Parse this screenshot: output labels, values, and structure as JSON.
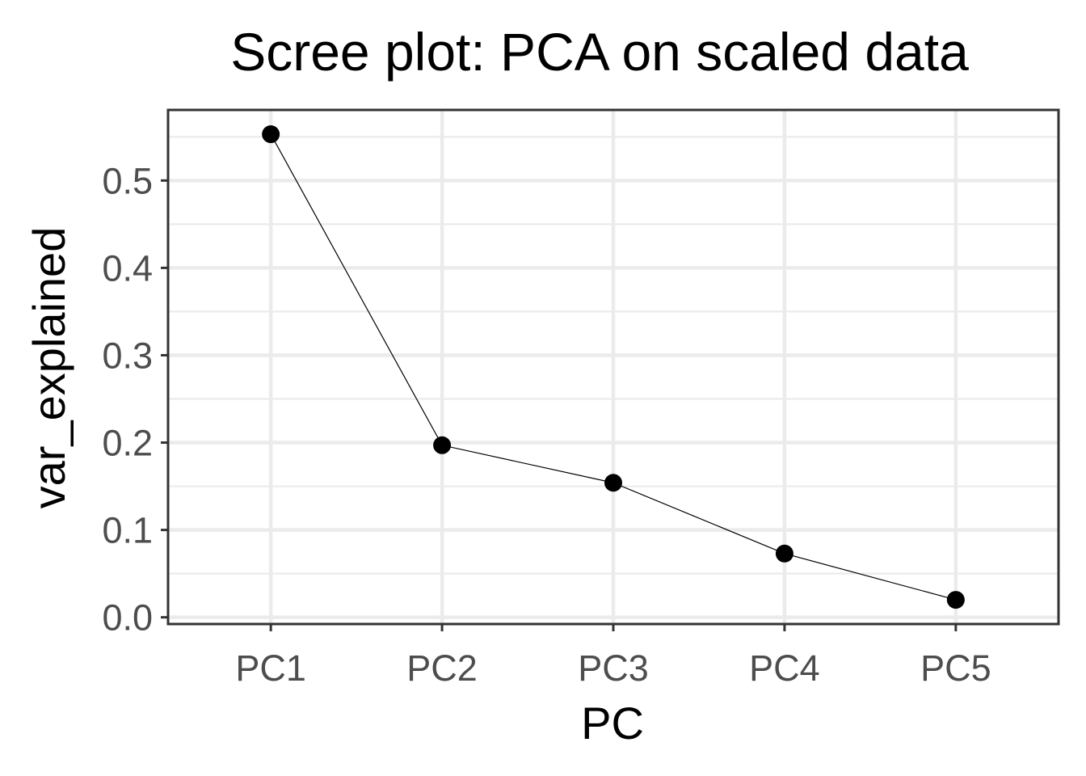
{
  "chart_data": {
    "type": "line",
    "title": "Scree plot: PCA on scaled data",
    "xlabel": "PC",
    "ylabel": "var_explained",
    "categories": [
      "PC1",
      "PC2",
      "PC3",
      "PC4",
      "PC5"
    ],
    "values": [
      0.553,
      0.197,
      0.154,
      0.073,
      0.02
    ],
    "y_ticks": [
      0.0,
      0.1,
      0.2,
      0.3,
      0.4,
      0.5
    ],
    "y_tick_labels": [
      "0.0",
      "0.1",
      "0.2",
      "0.3",
      "0.4",
      "0.5"
    ],
    "ylim": [
      -0.0077,
      0.5808
    ],
    "grid": true,
    "legend": "none",
    "colors": {
      "line": "#000000",
      "points": "#000000",
      "grid": "#ebebeb",
      "border": "#333333",
      "tick_text": "#4d4d4d"
    }
  }
}
